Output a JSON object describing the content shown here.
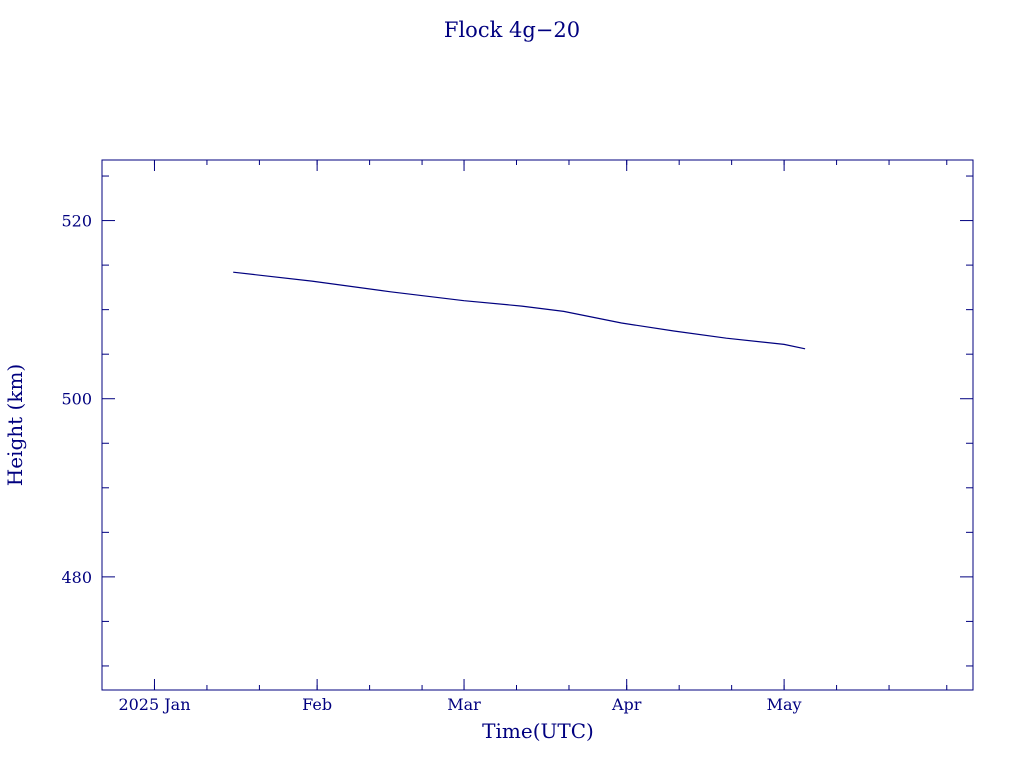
{
  "chart_data": {
    "type": "line",
    "title": "Flock 4g−20",
    "xlabel": "Time(UTC)",
    "ylabel": "Height (km)",
    "xlim": [
      "2024-12-22",
      "2025-06-06"
    ],
    "ylim": [
      467.3,
      526.8
    ],
    "x_ticks": [
      {
        "date": "2025-01-01",
        "label": "2025 Jan"
      },
      {
        "date": "2025-02-01",
        "label": "Feb"
      },
      {
        "date": "2025-03-01",
        "label": "Mar"
      },
      {
        "date": "2025-04-01",
        "label": "Apr"
      },
      {
        "date": "2025-05-01",
        "label": "May"
      }
    ],
    "y_ticks": [
      {
        "value": 480,
        "label": "480"
      },
      {
        "value": 500,
        "label": "500"
      },
      {
        "value": 520,
        "label": "520"
      }
    ],
    "grid": false,
    "series": [
      {
        "color": "#00007f",
        "points": [
          {
            "x": "2025-01-16",
            "y": 514.2
          },
          {
            "x": "2025-01-31",
            "y": 513.2
          },
          {
            "x": "2025-02-15",
            "y": 512.0
          },
          {
            "x": "2025-03-01",
            "y": 511.0
          },
          {
            "x": "2025-03-12",
            "y": 510.4
          },
          {
            "x": "2025-03-20",
            "y": 509.8
          },
          {
            "x": "2025-03-31",
            "y": 508.5
          },
          {
            "x": "2025-04-10",
            "y": 507.6
          },
          {
            "x": "2025-04-20",
            "y": 506.8
          },
          {
            "x": "2025-05-01",
            "y": 506.1
          },
          {
            "x": "2025-05-05",
            "y": 505.6
          }
        ]
      }
    ]
  }
}
